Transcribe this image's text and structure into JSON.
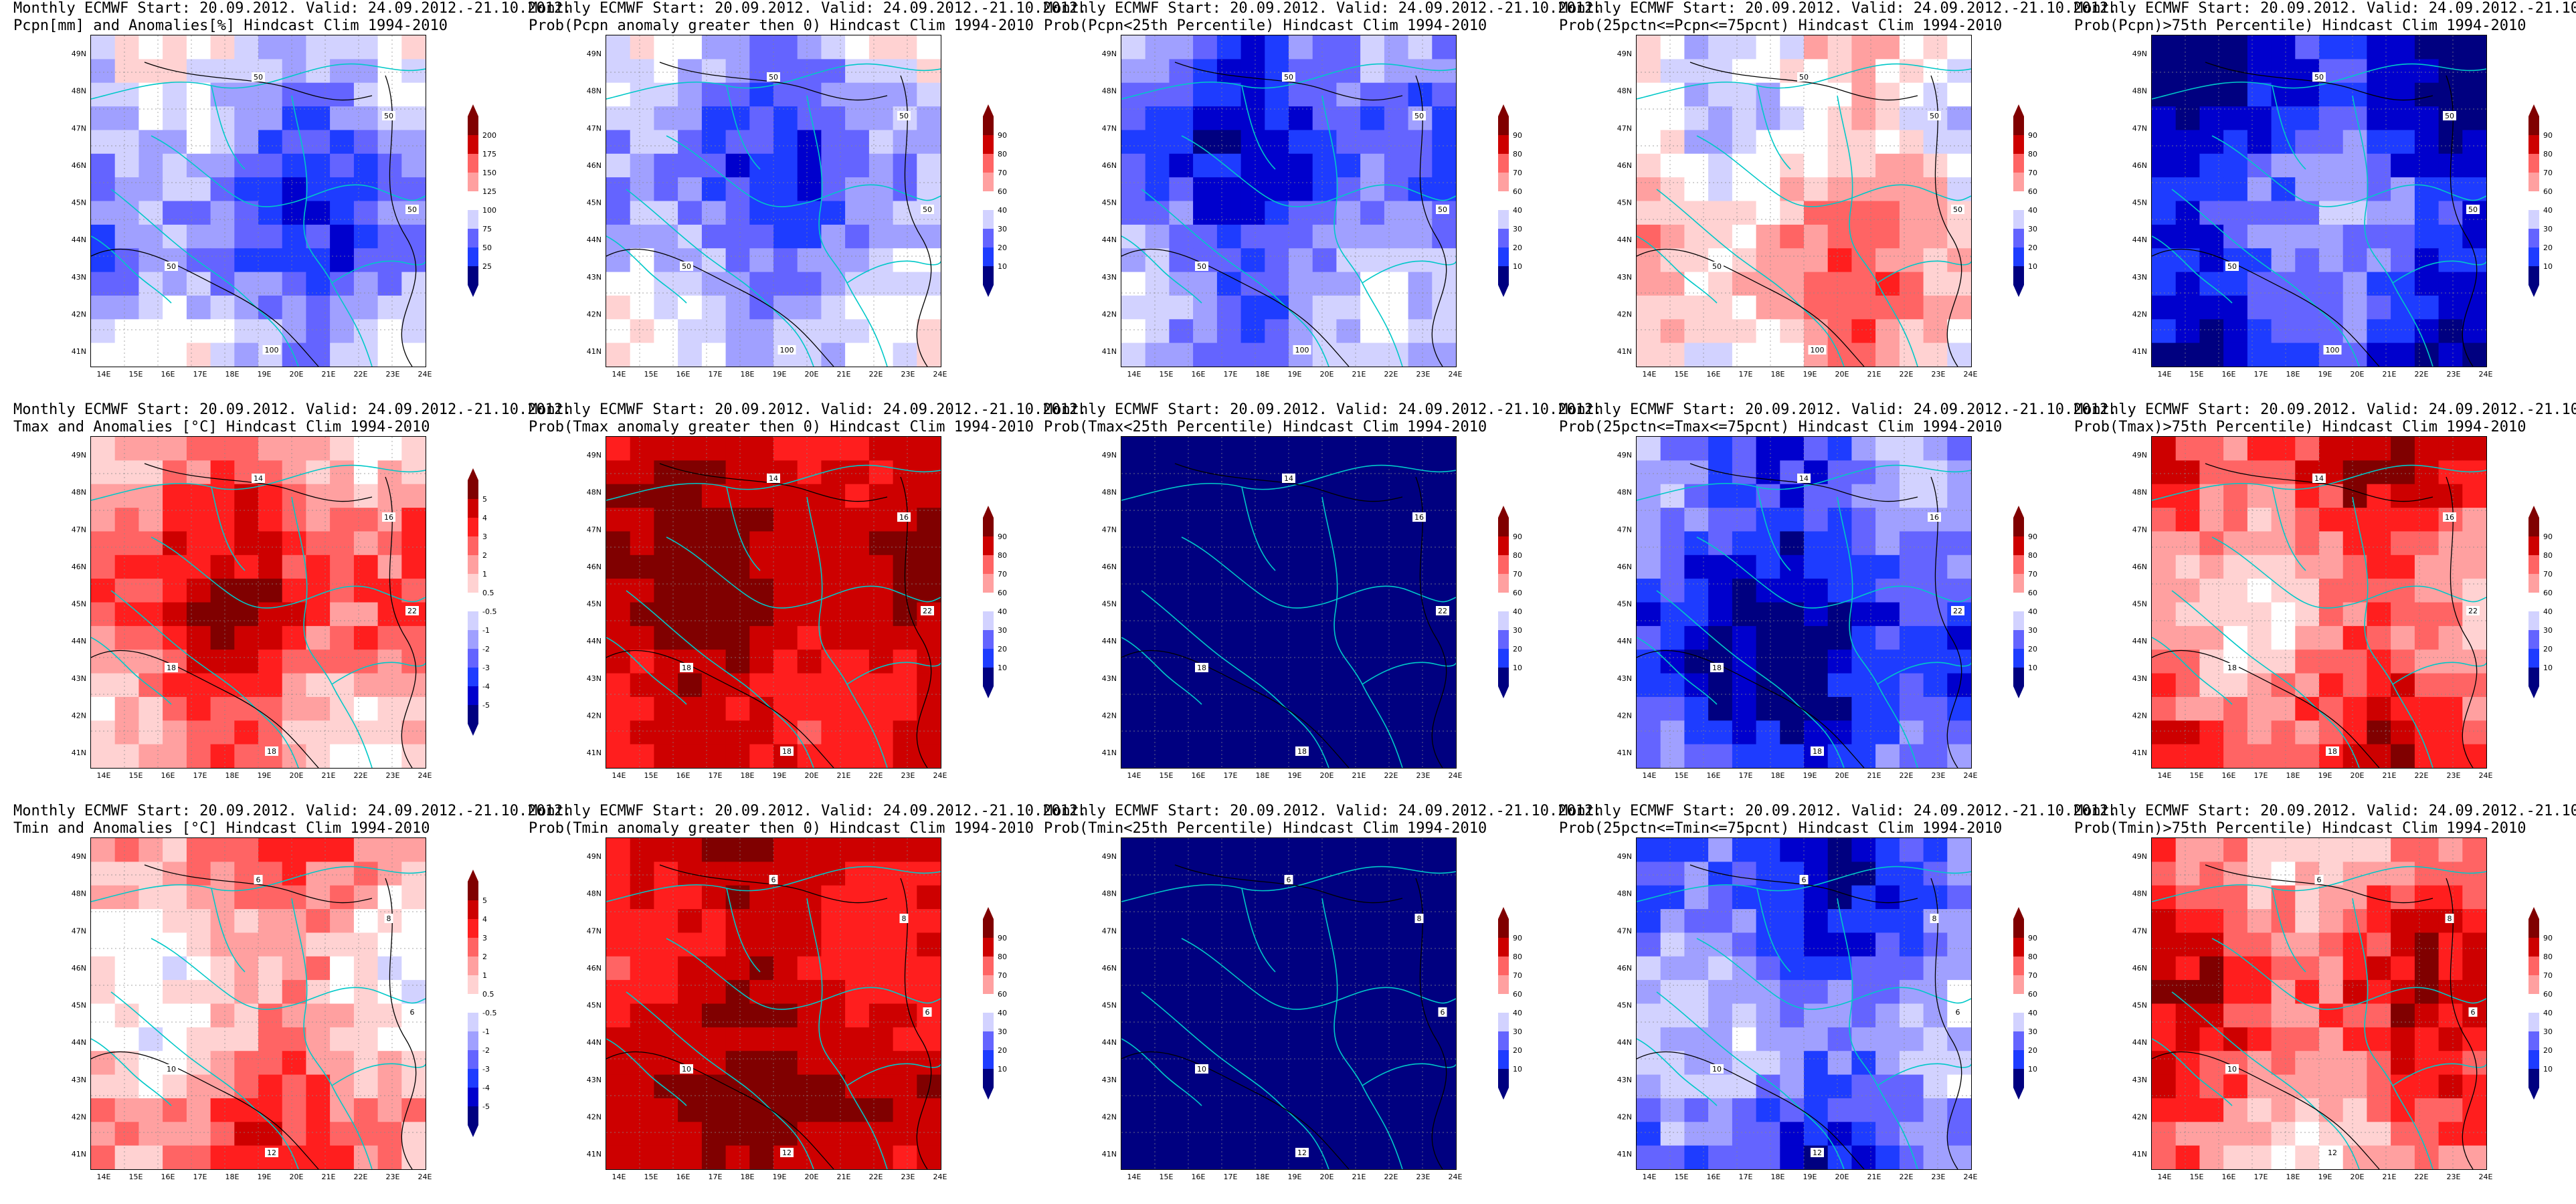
{
  "header": {
    "line1": "Monthly ECMWF Start: 20.09.2012. Valid: 24.09.2012.-21.10.2012."
  },
  "lon_ticks": [
    "14E",
    "15E",
    "16E",
    "17E",
    "18E",
    "19E",
    "20E",
    "21E",
    "22E",
    "23E",
    "24E"
  ],
  "lat_ticks": [
    "49N",
    "48N",
    "47N",
    "46N",
    "45N",
    "44N",
    "43N",
    "42N",
    "41N"
  ],
  "colorbars": {
    "pcpn": [
      "200",
      "175",
      "150",
      "125",
      "100",
      "75",
      "50",
      "25"
    ],
    "temp": [
      "5",
      "4",
      "3",
      "2",
      "1",
      "0.5",
      "-0.5",
      "-1",
      "-2",
      "-3",
      "-4",
      "-5"
    ],
    "prob": [
      "90",
      "80",
      "70",
      "60",
      "40",
      "30",
      "20",
      "10"
    ]
  },
  "colors": {
    "scale": [
      "#000080",
      "#0000cd",
      "#1e3cff",
      "#6464ff",
      "#a0a0ff",
      "#d2d2ff",
      "#ffffff",
      "#ffd2d2",
      "#ffa0a0",
      "#ff6464",
      "#ff1e1e",
      "#cd0000",
      "#800000"
    ],
    "coast": "#00c8c8",
    "contour": "#000000"
  },
  "panels": [
    {
      "line2": "Pcpn[mm] and Anomalies[%] Hindcast Clim 1994-2010",
      "colorbar": "pcpn",
      "base": 4,
      "variation": 2,
      "contours": [
        "50",
        "50",
        "50",
        "100",
        "50"
      ]
    },
    {
      "line2": "Prob(Pcpn anomaly greater then 0) Hindcast Clim 1994-2010",
      "colorbar": "prob",
      "base": 4,
      "variation": 2,
      "contours": [
        "50",
        "50",
        "50",
        "100",
        "50"
      ]
    },
    {
      "line2": "Prob(Pcpn<25th Percentile) Hindcast Clim 1994-2010",
      "colorbar": "prob",
      "base": 3,
      "variation": 2,
      "contours": [
        "50",
        "50",
        "50",
        "100",
        "50"
      ]
    },
    {
      "line2": "Prob(25pctn<=Pcpn<=75pcnt) Hindcast Clim 1994-2010",
      "colorbar": "prob",
      "base": 7,
      "variation": 2,
      "contours": [
        "50",
        "50",
        "50",
        "100",
        "50"
      ]
    },
    {
      "line2": "Prob(Pcpn)>75th Percentile) Hindcast Clim 1994-2010",
      "colorbar": "prob",
      "base": 2,
      "variation": 2,
      "contours": [
        "50",
        "50",
        "50",
        "100",
        "50"
      ]
    },
    {
      "line2": "Tmax and Anomalies [°C] Hindcast Clim 1994-2010",
      "colorbar": "temp",
      "base": 9,
      "variation": 2,
      "contours": [
        "14",
        "16",
        "18",
        "18",
        "22"
      ]
    },
    {
      "line2": "Prob(Tmax anomaly greater then 0) Hindcast Clim 1994-2010",
      "colorbar": "prob",
      "base": 11,
      "variation": 1,
      "contours": [
        "14",
        "16",
        "18",
        "18",
        "22"
      ]
    },
    {
      "line2": "Prob(Tmax<25th Percentile) Hindcast Clim 1994-2010",
      "colorbar": "prob",
      "base": 0,
      "variation": 0,
      "contours": [
        "14",
        "16",
        "18",
        "18",
        "22"
      ]
    },
    {
      "line2": "Prob(25pctn<=Tmax<=75pcnt) Hindcast Clim 1994-2010",
      "colorbar": "prob",
      "base": 2,
      "variation": 2,
      "contours": [
        "14",
        "16",
        "18",
        "18",
        "22"
      ]
    },
    {
      "line2": "Prob(Tmax)>75th Percentile) Hindcast Clim 1994-2010",
      "colorbar": "prob",
      "base": 9,
      "variation": 2,
      "contours": [
        "14",
        "16",
        "18",
        "18",
        "22"
      ]
    },
    {
      "line2": "Tmin and Anomalies [°C] Hindcast Clim 1994-2010",
      "colorbar": "temp",
      "base": 8,
      "variation": 2,
      "contours": [
        "6",
        "8",
        "10",
        "12",
        "6"
      ]
    },
    {
      "line2": "Prob(Tmin anomaly greater then 0) Hindcast Clim 1994-2010",
      "colorbar": "prob",
      "base": 11,
      "variation": 1,
      "contours": [
        "6",
        "8",
        "10",
        "12",
        "6"
      ]
    },
    {
      "line2": "Prob(Tmin<25th Percentile) Hindcast Clim 1994-2010",
      "colorbar": "prob",
      "base": 0,
      "variation": 0,
      "contours": [
        "6",
        "8",
        "10",
        "12",
        "6"
      ]
    },
    {
      "line2": "Prob(25pctn<=Tmin<=75pcnt) Hindcast Clim 1994-2010",
      "colorbar": "prob",
      "base": 3,
      "variation": 2,
      "contours": [
        "6",
        "8",
        "10",
        "12",
        "6"
      ]
    },
    {
      "line2": "Prob(Tmin)>75th Percentile) Hindcast Clim 1994-2010",
      "colorbar": "prob",
      "base": 9,
      "variation": 2,
      "contours": [
        "6",
        "8",
        "10",
        "12",
        "6"
      ]
    }
  ]
}
